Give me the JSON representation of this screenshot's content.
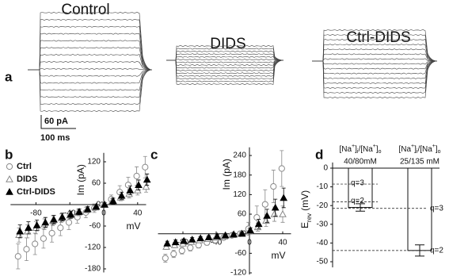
{
  "panel_a": {
    "label": "a",
    "titles": [
      "Control",
      "DIDS",
      "Ctrl-DIDS"
    ],
    "scale_current": "60 pA",
    "scale_time": "100 ms"
  },
  "chart_data": [
    {
      "type": "scatter",
      "label": "b",
      "ylabel": "Im (pA)",
      "xlabel": "mV",
      "x": [
        -100,
        -90,
        -80,
        -70,
        -60,
        -50,
        -40,
        -30,
        -20,
        -10,
        0,
        10,
        20,
        30,
        40,
        50
      ],
      "xlim": [
        -110,
        50
      ],
      "xticks": [
        -80,
        -40,
        0,
        40
      ],
      "ylim": [
        -190,
        145
      ],
      "yticks": [
        120,
        60,
        0,
        -60,
        -120,
        -180
      ],
      "series": [
        {
          "name": "Ctrl",
          "color": "#888888",
          "marker": "open-circle",
          "values": [
            -145,
            -125,
            -110,
            -95,
            -80,
            -65,
            -50,
            -35,
            -22,
            -10,
            0,
            15,
            35,
            55,
            80,
            105
          ],
          "errors": [
            35,
            32,
            30,
            27,
            25,
            22,
            20,
            17,
            15,
            12,
            8,
            12,
            18,
            22,
            26,
            30
          ]
        },
        {
          "name": "DIDS",
          "color": "#888888",
          "marker": "open-triangle",
          "values": [
            -85,
            -75,
            -65,
            -55,
            -45,
            -38,
            -30,
            -22,
            -15,
            -8,
            0,
            10,
            20,
            30,
            40,
            50
          ],
          "errors": [
            20,
            18,
            17,
            15,
            14,
            12,
            10,
            9,
            8,
            6,
            5,
            7,
            9,
            11,
            13,
            15
          ]
        },
        {
          "name": "Ctrl-DIDS",
          "color": "#000000",
          "marker": "filled-triangle",
          "values": [
            -75,
            -65,
            -58,
            -50,
            -42,
            -35,
            -28,
            -20,
            -13,
            -6,
            0,
            10,
            25,
            40,
            55,
            70
          ],
          "errors": [
            18,
            17,
            15,
            14,
            12,
            11,
            10,
            8,
            7,
            6,
            5,
            8,
            10,
            12,
            14,
            16
          ]
        }
      ]
    },
    {
      "type": "scatter",
      "label": "c",
      "ylabel": "Im (pA)",
      "xlabel": "mV",
      "x": [
        -100,
        -90,
        -80,
        -70,
        -60,
        -50,
        -40,
        -30,
        -20,
        -10,
        0,
        10,
        20,
        30,
        40
      ],
      "xlim": [
        -110,
        50
      ],
      "xticks": [
        -80,
        -40,
        0,
        40
      ],
      "ylim": [
        -125,
        265
      ],
      "yticks": [
        240,
        180,
        120,
        60,
        0,
        -60,
        -120
      ],
      "series": [
        {
          "name": "Ctrl",
          "color": "#888888",
          "marker": "open-circle",
          "values": [
            -75,
            -62,
            -52,
            -43,
            -35,
            -27,
            -20,
            -12,
            -5,
            0,
            15,
            50,
            90,
            145,
            200
          ],
          "errors": [
            12,
            11,
            10,
            10,
            9,
            8,
            8,
            7,
            6,
            6,
            20,
            35,
            45,
            50,
            55
          ]
        },
        {
          "name": "DIDS",
          "color": "#888888",
          "marker": "open-triangle",
          "values": [
            -40,
            -35,
            -30,
            -25,
            -20,
            -16,
            -12,
            -8,
            -4,
            0,
            8,
            20,
            40,
            60,
            60
          ],
          "errors": [
            8,
            8,
            7,
            7,
            6,
            6,
            5,
            5,
            4,
            4,
            8,
            12,
            18,
            22,
            25
          ]
        },
        {
          "name": "Ctrl-DIDS",
          "color": "#000000",
          "marker": "filled-triangle",
          "values": [
            -30,
            -26,
            -22,
            -18,
            -14,
            -11,
            -8,
            -5,
            -2,
            0,
            10,
            30,
            55,
            80,
            110
          ],
          "errors": [
            7,
            7,
            6,
            6,
            5,
            5,
            5,
            4,
            4,
            4,
            8,
            14,
            20,
            26,
            30
          ]
        }
      ]
    },
    {
      "type": "bar",
      "label": "d",
      "ylabel": "E",
      "ylabel_sub": "rev",
      "ylabel_unit": "(mV)",
      "header_parts": [
        "[Na",
        "+",
        "]",
        "i",
        "/[Na",
        "+",
        "]",
        "o"
      ],
      "ylim": [
        -53,
        3
      ],
      "yticks": [
        0,
        -10,
        -20,
        -30,
        -40,
        -50
      ],
      "categories": [
        "40/80mM",
        "25/135 mM"
      ],
      "values": [
        -21,
        -44
      ],
      "errors": [
        2,
        3
      ],
      "reference_lines": [
        [
          {
            "label": "q=3",
            "value": -8.5
          },
          {
            "label": "q=2",
            "value": -18
          }
        ],
        [
          {
            "label": "q=3",
            "value": -21.5
          },
          {
            "label": "q=2",
            "value": -44
          }
        ]
      ]
    }
  ]
}
